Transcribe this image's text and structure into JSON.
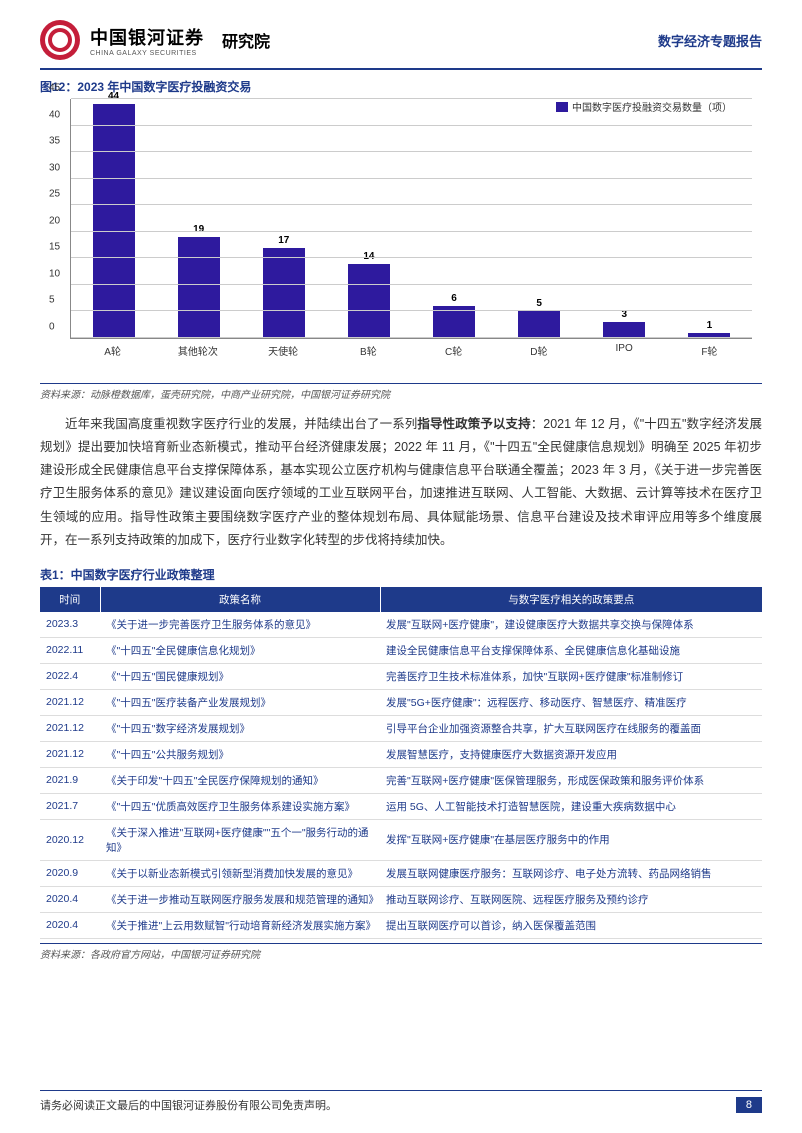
{
  "header": {
    "brand_cn": "中国银河证券",
    "brand_en": "CHINA GALAXY SECURITIES",
    "institute": "研究院",
    "report_type": "数字经济专题报告"
  },
  "chart": {
    "title": "图12：2023 年中国数字医疗投融资交易",
    "type": "bar",
    "categories": [
      "A轮",
      "其他轮次",
      "天使轮",
      "B轮",
      "C轮",
      "D轮",
      "IPO",
      "F轮"
    ],
    "values": [
      44,
      19,
      17,
      14,
      6,
      5,
      3,
      1
    ],
    "bar_color": "#2e1a9e",
    "ylim": [
      0,
      45
    ],
    "ytick_step": 5,
    "yticks": [
      0,
      5,
      10,
      15,
      20,
      25,
      30,
      35,
      40,
      45
    ],
    "legend_label": "中国数字医疗投融资交易数量（项）",
    "grid_color": "#cccccc",
    "background_color": "#ffffff",
    "label_fontsize": 10,
    "value_fontsize": 10
  },
  "chart_source": "资料来源：动脉橙数据库，蛋壳研究院，中商产业研究院，中国银河证券研究院",
  "paragraph": {
    "pre": "近年来我国高度重视数字医疗行业的发展，并陆续出台了一系列",
    "bold": "指导性政策予以支持",
    "post": "：2021 年 12 月，《\"十四五\"数字经济发展规划》提出要加快培育新业态新模式，推动平台经济健康发展；2022 年 11 月，《\"十四五\"全民健康信息规划》明确至 2025 年初步建设形成全民健康信息平台支撑保障体系，基本实现公立医疗机构与健康信息平台联通全覆盖；2023 年 3 月，《关于进一步完善医疗卫生服务体系的意见》建议建设面向医疗领域的工业互联网平台，加速推进互联网、人工智能、大数据、云计算等技术在医疗卫生领域的应用。指导性政策主要围绕数字医疗产业的整体规划布局、具体赋能场景、信息平台建设及技术审评应用等多个维度展开，在一系列支持政策的加成下，医疗行业数字化转型的步伐将持续加快。"
  },
  "table": {
    "title": "表1：中国数字医疗行业政策整理",
    "columns": [
      "时间",
      "政策名称",
      "与数字医疗相关的政策要点"
    ],
    "rows": [
      [
        "2023.3",
        "《关于进一步完善医疗卫生服务体系的意见》",
        "发展\"互联网+医疗健康\"，建设健康医疗大数据共享交换与保障体系"
      ],
      [
        "2022.11",
        "《\"十四五\"全民健康信息化规划》",
        "建设全民健康信息平台支撑保障体系、全民健康信息化基础设施"
      ],
      [
        "2022.4",
        "《\"十四五\"国民健康规划》",
        "完善医疗卫生技术标准体系，加快\"互联网+医疗健康\"标准制修订"
      ],
      [
        "2021.12",
        "《\"十四五\"医疗装备产业发展规划》",
        "发展\"5G+医疗健康\"：远程医疗、移动医疗、智慧医疗、精准医疗"
      ],
      [
        "2021.12",
        "《\"十四五\"数字经济发展规划》",
        "引导平台企业加强资源整合共享，扩大互联网医疗在线服务的覆盖面"
      ],
      [
        "2021.12",
        "《\"十四五\"公共服务规划》",
        "发展智慧医疗，支持健康医疗大数据资源开发应用"
      ],
      [
        "2021.9",
        "《关于印发\"十四五\"全民医疗保障规划的通知》",
        "完善\"互联网+医疗健康\"医保管理服务，形成医保政策和服务评价体系"
      ],
      [
        "2021.7",
        "《\"十四五\"优质高效医疗卫生服务体系建设实施方案》",
        "运用 5G、人工智能技术打造智慧医院，建设重大疾病数据中心"
      ],
      [
        "2020.12",
        "《关于深入推进\"互联网+医疗健康\"\"五个一\"服务行动的通知》",
        "发挥\"互联网+医疗健康\"在基层医疗服务中的作用"
      ],
      [
        "2020.9",
        "《关于以新业态新模式引领新型消费加快发展的意见》",
        "发展互联网健康医疗服务：互联网诊疗、电子处方流转、药品网络销售"
      ],
      [
        "2020.4",
        "《关于进一步推动互联网医疗服务发展和规范管理的通知》",
        "推动互联网诊疗、互联网医院、远程医疗服务及预约诊疗"
      ],
      [
        "2020.4",
        "《关于推进\"上云用数赋智\"行动培育新经济发展实施方案》",
        "提出互联网医疗可以首诊，纳入医保覆盖范围"
      ]
    ],
    "header_bg": "#1e3a8a",
    "header_color": "#ffffff",
    "cell_color": "#1e3a8a"
  },
  "table_source": "资料来源：各政府官方网站，中国银河证券研究院",
  "footer": {
    "disclaimer": "请务必阅读正文最后的中国银河证券股份有限公司免责声明。",
    "page": "8"
  }
}
